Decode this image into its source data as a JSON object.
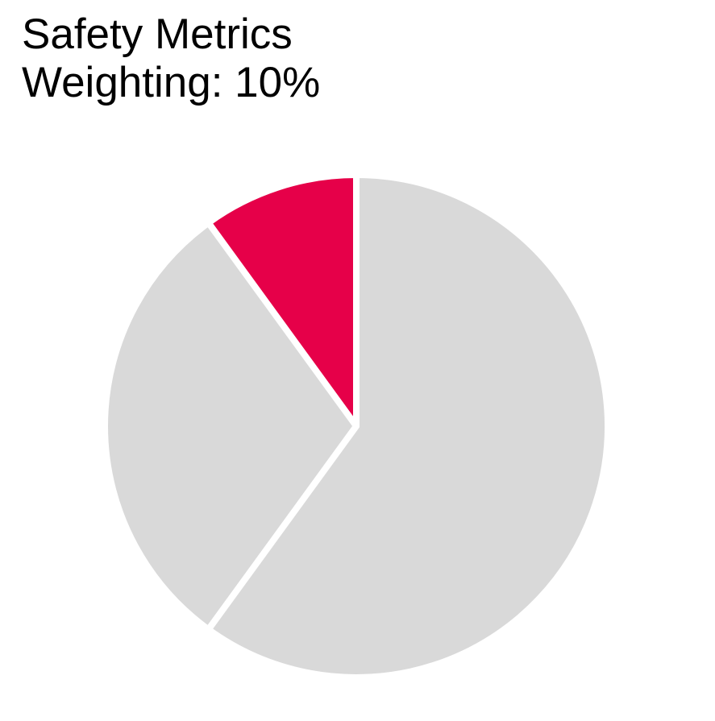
{
  "figure": {
    "background_color": "#FFFFFF"
  },
  "header": {
    "title_line1": "Safety Metrics",
    "title_line2": "Weighting: 10%",
    "text_color": "#000000"
  },
  "chart_data": {
    "type": "pie",
    "title": "Safety Metrics Weighting: 10%",
    "start_angle_deg": 90,
    "direction": "counterclockwise",
    "separator_color": "#FFFFFF",
    "separator_width": 8,
    "legend": "none",
    "data_labels": "none",
    "slices": [
      {
        "label": "Safety Metrics",
        "value": 10,
        "color": "#E60049",
        "highlighted": true
      },
      {
        "label": "",
        "value": 30,
        "color": "#D9D9D9",
        "highlighted": false
      },
      {
        "label": "",
        "value": 60,
        "color": "#D9D9D9",
        "highlighted": false
      }
    ]
  },
  "colors": {
    "accent": "#E60049",
    "muted": "#D9D9D9",
    "background": "#FFFFFF"
  }
}
